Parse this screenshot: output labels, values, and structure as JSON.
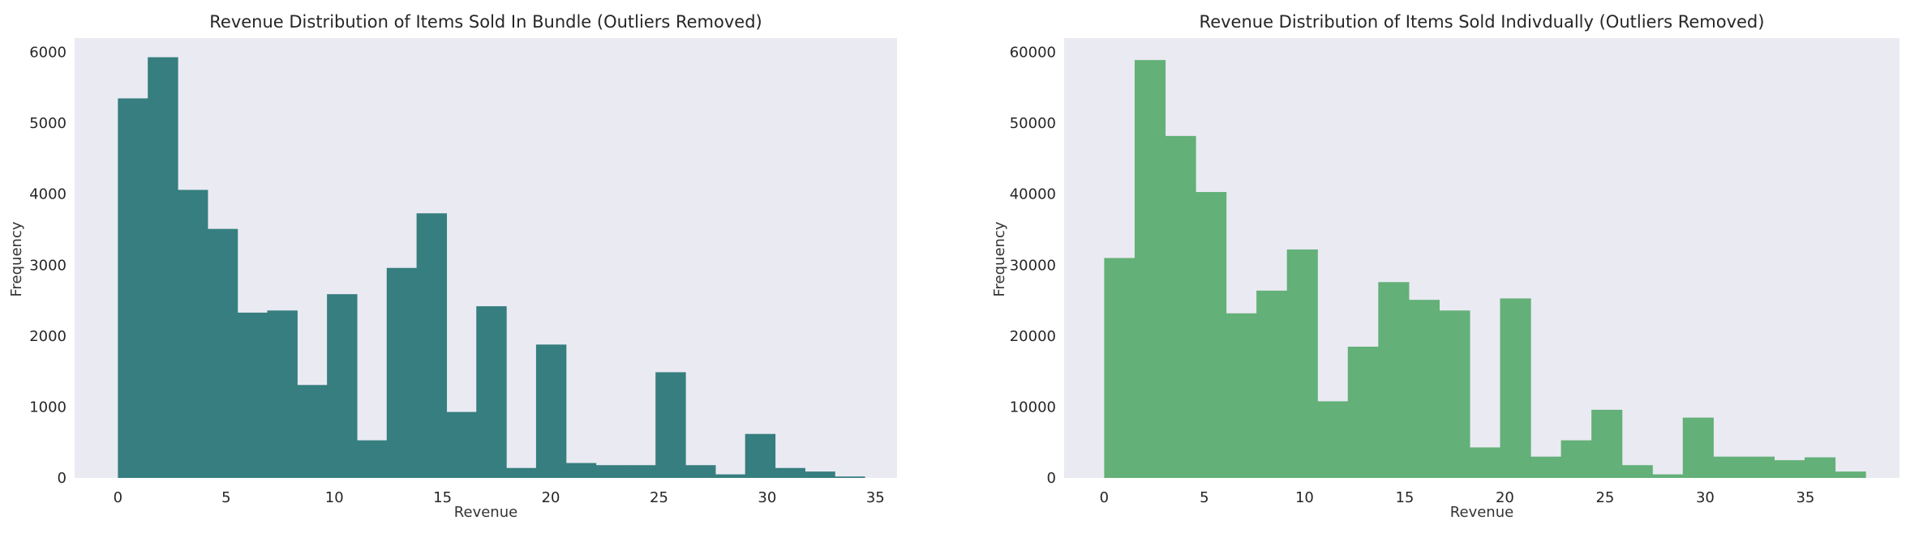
{
  "chart_data": [
    {
      "type": "bar",
      "title": "Revenue Distribution of Items Sold In Bundle (Outliers Removed)",
      "xlabel": "Revenue",
      "ylabel": "Frequency",
      "xlim": [
        -2.0,
        36.0
      ],
      "ylim": [
        0,
        6200
      ],
      "xticks": [
        0,
        5,
        10,
        15,
        20,
        25,
        30,
        35
      ],
      "yticks": [
        0,
        1000,
        2000,
        3000,
        4000,
        5000,
        6000
      ],
      "grid": false,
      "color": "#367e7f",
      "bin_start": 0,
      "bin_width": 1.38,
      "values": [
        5350,
        5930,
        4060,
        3510,
        2330,
        2360,
        1310,
        2590,
        530,
        2960,
        3730,
        930,
        2420,
        140,
        1880,
        210,
        180,
        180,
        1490,
        180,
        50,
        620,
        140,
        90,
        20
      ]
    },
    {
      "type": "bar",
      "title": "Revenue Distribution of Items Sold Indivdually (Outliers Removed)",
      "xlabel": "Revenue",
      "ylabel": "Frequency",
      "xlim": [
        -2.0,
        39.7
      ],
      "ylim": [
        0,
        62000
      ],
      "xticks": [
        0,
        5,
        10,
        15,
        20,
        25,
        30,
        35
      ],
      "yticks": [
        0,
        10000,
        20000,
        30000,
        40000,
        50000,
        60000
      ],
      "grid": false,
      "color": "#63b078",
      "bin_start": 0,
      "bin_width": 1.52,
      "values": [
        31000,
        58900,
        48200,
        40300,
        23200,
        26400,
        32200,
        10800,
        18500,
        27600,
        25100,
        23600,
        4300,
        25300,
        3000,
        5300,
        9600,
        1800,
        500,
        8500,
        3000,
        3000,
        2500,
        2900,
        900
      ]
    }
  ]
}
